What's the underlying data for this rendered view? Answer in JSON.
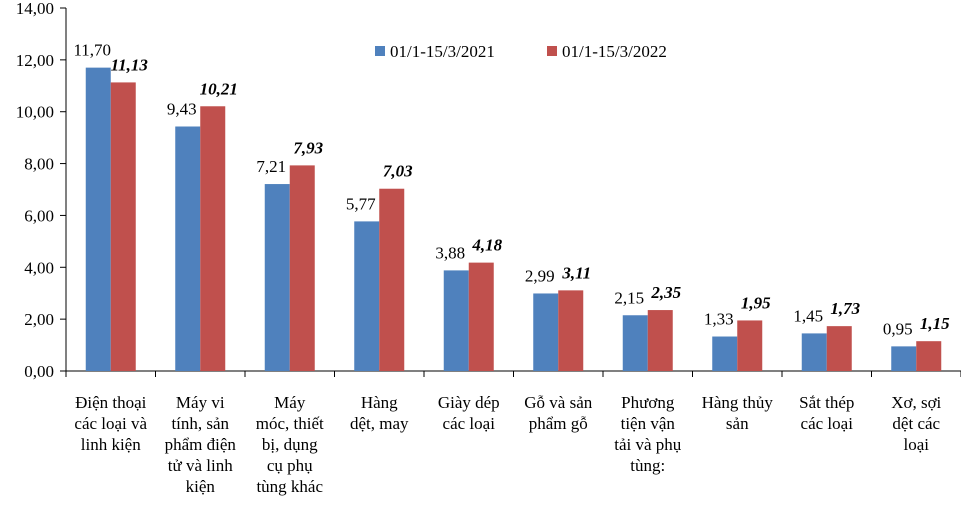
{
  "chart_data": {
    "type": "bar",
    "title": "",
    "xlabel": "",
    "ylabel": "",
    "ylim": [
      0,
      14
    ],
    "yticks": [
      "0,00",
      "2,00",
      "4,00",
      "6,00",
      "8,00",
      "10,00",
      "12,00",
      "14,00"
    ],
    "grid": false,
    "legend_position": "top-right",
    "categories": [
      [
        "Điện thoại",
        "các loại và",
        "linh kiện"
      ],
      [
        "Máy vi",
        "tính, sản",
        "phẩm điện",
        "tử và linh",
        "kiện"
      ],
      [
        "Máy",
        "móc, thiết",
        "bị, dụng",
        "cụ phụ",
        "tùng khác"
      ],
      [
        "Hàng",
        "dệt, may"
      ],
      [
        "Giày dép",
        "các loại"
      ],
      [
        "Gỗ và sản",
        "phẩm gỗ"
      ],
      [
        "Phương",
        "tiện vận",
        "tải và phụ",
        "tùng:"
      ],
      [
        "Hàng thủy",
        "sản"
      ],
      [
        "Sắt thép",
        "các loại"
      ],
      [
        "Xơ, sợi",
        "dệt các",
        "loại"
      ]
    ],
    "series": [
      {
        "name": "01/1-15/3/2021",
        "color": "#4F81BD",
        "values": [
          11.7,
          9.43,
          7.21,
          5.77,
          3.88,
          2.99,
          2.15,
          1.33,
          1.45,
          0.95
        ],
        "labels": [
          "11,70",
          "9,43",
          "7,21",
          "5,77",
          "3,88",
          "2,99",
          "2,15",
          "1,33",
          "1,45",
          "0,95"
        ]
      },
      {
        "name": "01/1-15/3/2022",
        "color": "#C0504D",
        "values": [
          11.13,
          10.21,
          7.93,
          7.03,
          4.18,
          3.11,
          2.35,
          1.95,
          1.73,
          1.15
        ],
        "labels": [
          "11,13",
          "10,21",
          "7,93",
          "7,03",
          "4,18",
          "3,11",
          "2,35",
          "1,95",
          "1,73",
          "1,15"
        ]
      }
    ]
  }
}
